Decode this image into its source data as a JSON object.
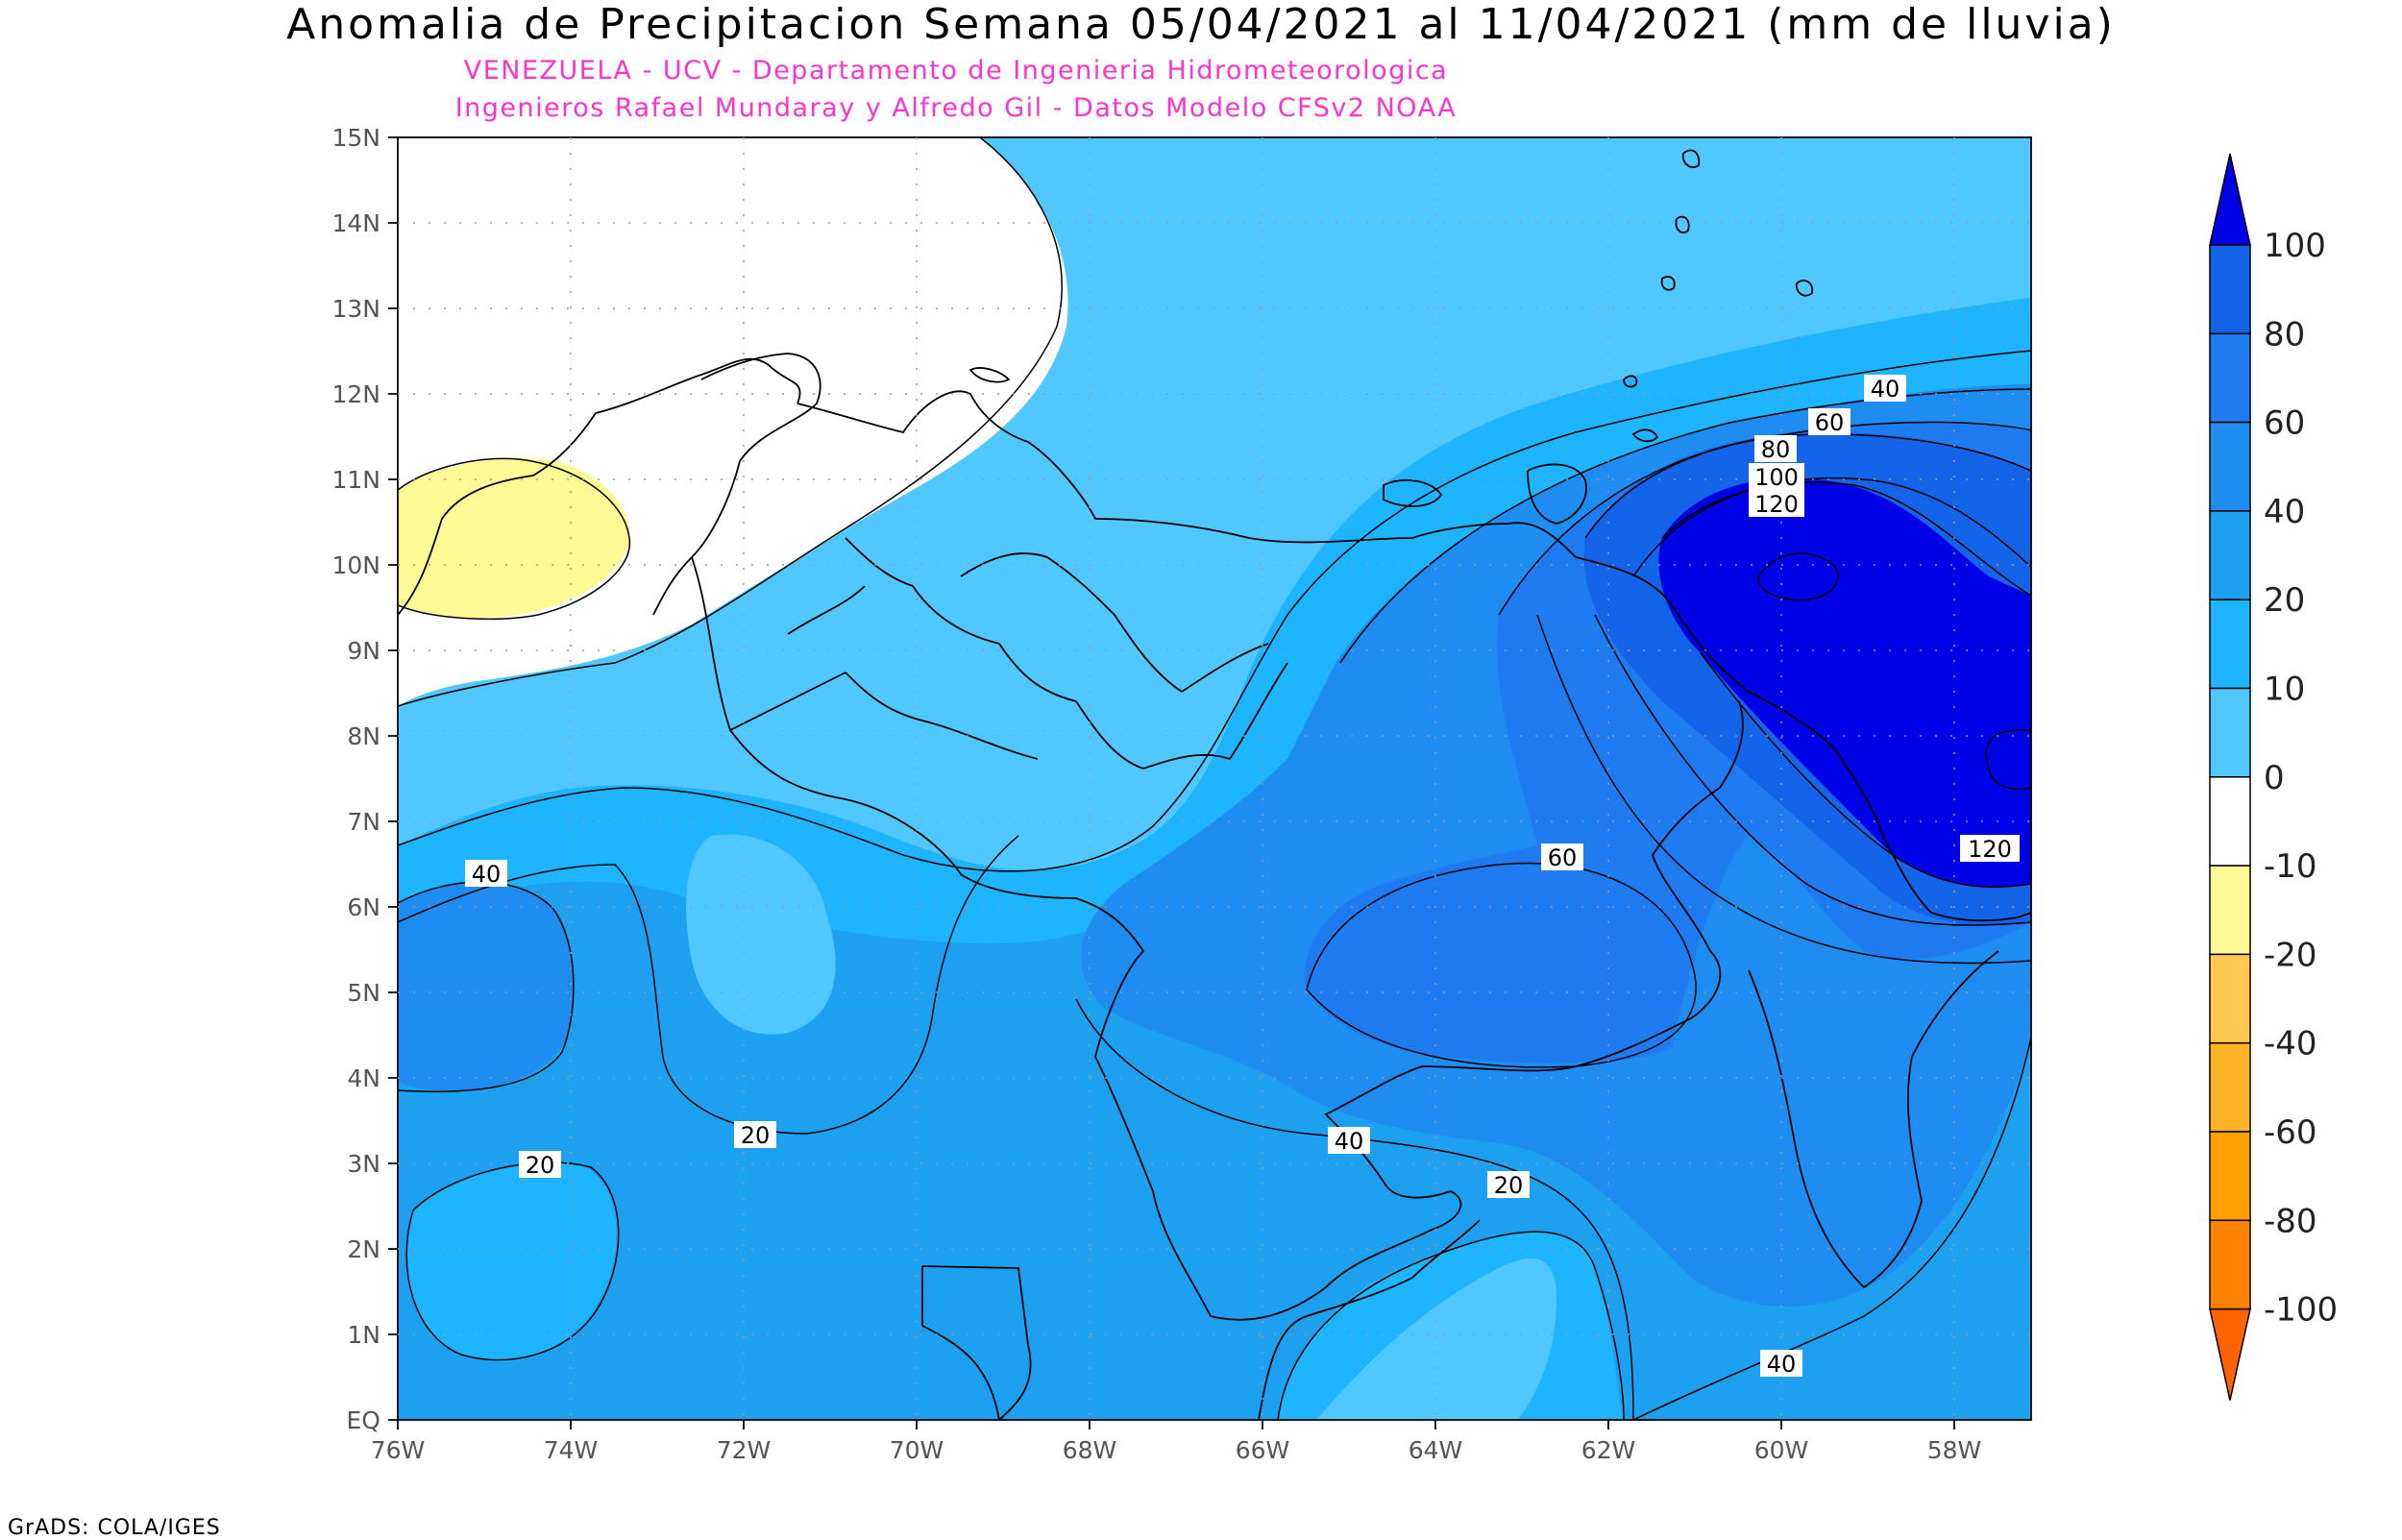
{
  "title": "Anomalia de Precipitacion Semana 05/04/2021 al 11/04/2021 (mm de lluvia)",
  "subtitle_line1": "VENEZUELA - UCV - Departamento de Ingenieria Hidrometeorologica",
  "subtitle_line2": "Ingenieros Rafael Mundaray y Alfredo Gil - Datos Modelo CFSv2 NOAA",
  "credit": "GrADS: COLA/IGES",
  "lat_labels": [
    "15N",
    "14N",
    "13N",
    "12N",
    "11N",
    "10N",
    "9N",
    "8N",
    "7N",
    "6N",
    "5N",
    "4N",
    "3N",
    "2N",
    "1N",
    "EQ"
  ],
  "lon_labels": [
    "76W",
    "74W",
    "72W",
    "70W",
    "68W",
    "66W",
    "64W",
    "62W",
    "60W",
    "58W"
  ],
  "contour_labels": [
    "40",
    "60",
    "80",
    "100",
    "120",
    "60",
    "40",
    "20",
    "40",
    "20",
    "20",
    "40",
    "120"
  ],
  "colorbar": {
    "labels": [
      "100",
      "80",
      "60",
      "40",
      "20",
      "10",
      "0",
      "-10",
      "-20",
      "-40",
      "-60",
      "-80",
      "-100"
    ],
    "colors": [
      "#0000e6",
      "#1464ea",
      "#1e7cf0",
      "#1e8cf0",
      "#1ea0f0",
      "#1eb4ff",
      "#50c8ff",
      "#ffffff",
      "#fffa96",
      "#ffc850",
      "#ffb428",
      "#ffa000",
      "#ff8200",
      "#ff6400"
    ]
  },
  "legend_level_colors": {
    "below_minus_10": "#fffa96",
    "minus_10_to_0": "#ffffff",
    "0_to_10": "#50c8ff",
    "10_to_20": "#1eb4ff",
    "20_to_40": "#1ea0f0",
    "40_to_60": "#1e8cf0",
    "60_to_80": "#1e7cf0",
    "80_to_100": "#1464ea",
    "above_100": "#0000e6"
  }
}
